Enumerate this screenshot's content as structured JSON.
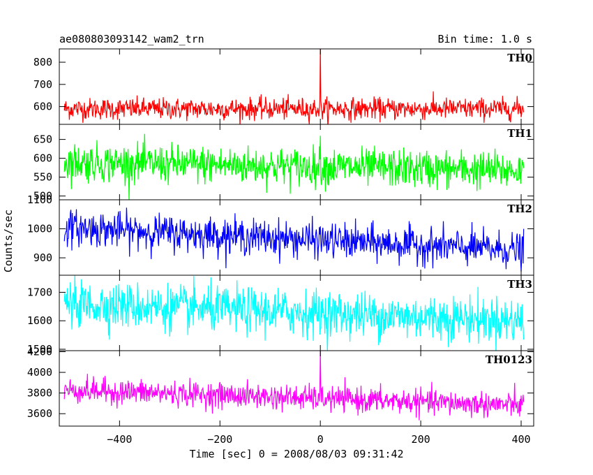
{
  "header": {
    "title": "ae080803093142_wam2_trn",
    "bin_time": "Bin time: 1.0 s"
  },
  "chart_data": {
    "type": "line",
    "xlabel": "Time [sec] 0 = 2008/08/03 09:31:42",
    "ylabel": "Counts/sec",
    "xlim": [
      -520,
      425
    ],
    "x_ticks": [
      -400,
      -200,
      0,
      200,
      400
    ],
    "x_tick_labels": [
      "−400",
      "−200",
      "0",
      "200",
      "400"
    ],
    "x_range": [
      -510,
      405
    ],
    "bin_time_s": 1.0,
    "series": [
      {
        "name": "TH0",
        "color": "#ff0000",
        "ylim": [
          520,
          860
        ],
        "y_ticks": [
          600,
          700,
          800
        ],
        "mean_start": 590,
        "mean_end": 590,
        "noise_sd": 24,
        "spike": {
          "x": 0,
          "y": 870
        }
      },
      {
        "name": "TH1",
        "color": "#00ff00",
        "ylim": [
          490,
          690
        ],
        "y_ticks": [
          500,
          550,
          600,
          650
        ],
        "mean_start": 590,
        "mean_end": 567,
        "noise_sd": 25,
        "spike": {
          "x": 0,
          "y": 660
        }
      },
      {
        "name": "TH2",
        "color": "#0000ff",
        "ylim": [
          840,
          1100
        ],
        "y_ticks": [
          900,
          1000,
          1100
        ],
        "mean_start": 1005,
        "mean_end": 925,
        "noise_sd": 30
      },
      {
        "name": "TH3",
        "color": "#00ffff",
        "ylim": [
          1495,
          1760
        ],
        "y_ticks": [
          1500,
          1600,
          1700
        ],
        "mean_start": 1660,
        "mean_end": 1600,
        "noise_sd": 40
      },
      {
        "name": "TH0123",
        "color": "#ff00ff",
        "ylim": [
          3480,
          4210
        ],
        "y_ticks": [
          3600,
          3800,
          4000,
          4200
        ],
        "mean_start": 3830,
        "mean_end": 3680,
        "noise_sd": 60,
        "spike": {
          "x": 0,
          "y": 4210
        }
      }
    ]
  }
}
